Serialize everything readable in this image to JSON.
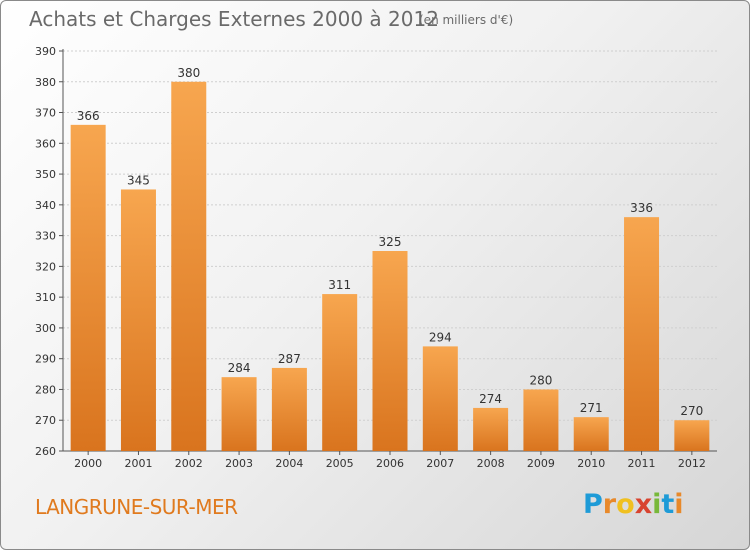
{
  "header": {
    "title": "Achats et Charges Externes 2000 à 2012",
    "unit": "(en milliers d'€)"
  },
  "footer": {
    "commune": "LANGRUNE-SUR-MER",
    "logo_letters": [
      "P",
      "r",
      "o",
      "x",
      "i",
      "t",
      "i"
    ],
    "logo_colors": [
      "#1e9bd7",
      "#e8892a",
      "#f0c020",
      "#d8432f",
      "#78b83a",
      "#1e9bd7",
      "#e8892a"
    ]
  },
  "colors": {
    "bar_top": "#f7a64f",
    "bar_bottom": "#d9741e",
    "axis_text": "#333333",
    "grid": "#cfcfcf"
  },
  "chart_data": {
    "type": "bar",
    "title": "Achats et Charges Externes 2000 à 2012",
    "subtitle": "(en milliers d'€)",
    "categories": [
      "2000",
      "2001",
      "2002",
      "2003",
      "2004",
      "2005",
      "2006",
      "2007",
      "2008",
      "2009",
      "2010",
      "2011",
      "2012"
    ],
    "values": [
      366,
      345,
      380,
      284,
      287,
      311,
      325,
      294,
      274,
      280,
      271,
      336,
      270
    ],
    "ylim": [
      260,
      390
    ],
    "yticks": [
      260,
      270,
      280,
      290,
      300,
      310,
      320,
      330,
      340,
      350,
      360,
      370,
      380,
      390
    ],
    "grid": true,
    "data_labels": true,
    "legend": "none"
  }
}
